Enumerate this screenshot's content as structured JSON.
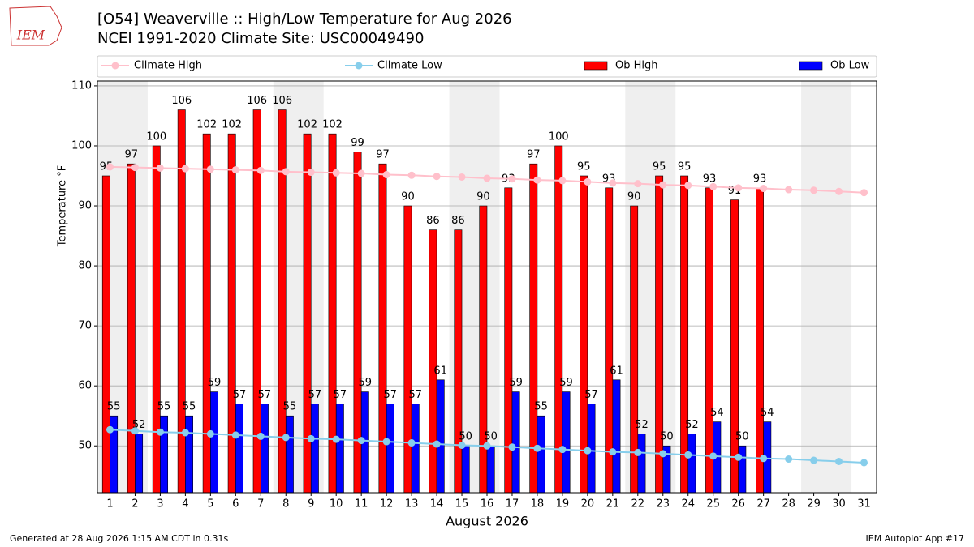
{
  "chart_data": {
    "type": "bar",
    "title": "[O54] Weaverville :: High/Low Temperature for Aug 2026",
    "subtitle": "NCEI 1991-2020 Climate Site: USC00049490",
    "logo_text": "IEM",
    "xlabel": "August 2026",
    "ylabel": "Temperature °F",
    "x": [
      1,
      2,
      3,
      4,
      5,
      6,
      7,
      8,
      9,
      10,
      11,
      12,
      13,
      14,
      15,
      16,
      17,
      18,
      19,
      20,
      21,
      22,
      23,
      24,
      25,
      26,
      27,
      28,
      29,
      30,
      31
    ],
    "xlim": [
      0.5,
      31.5
    ],
    "xticks": [
      1,
      2,
      3,
      4,
      5,
      6,
      7,
      8,
      9,
      10,
      11,
      12,
      13,
      14,
      15,
      16,
      17,
      18,
      19,
      20,
      21,
      22,
      23,
      24,
      25,
      26,
      27,
      28,
      29,
      30,
      31
    ],
    "ylim": [
      42.2,
      110.8
    ],
    "yticks": [
      50,
      60,
      70,
      80,
      90,
      100,
      110
    ],
    "grid": true,
    "series": [
      {
        "name": "Climate High",
        "type": "line",
        "color": "#ffc0cb",
        "values": [
          96.5,
          96.4,
          96.3,
          96.2,
          96.1,
          96.0,
          95.9,
          95.7,
          95.6,
          95.5,
          95.4,
          95.2,
          95.1,
          94.9,
          94.8,
          94.6,
          94.5,
          94.3,
          94.2,
          94.0,
          93.8,
          93.7,
          93.5,
          93.4,
          93.2,
          93.0,
          92.9,
          92.7,
          92.6,
          92.4,
          92.2
        ]
      },
      {
        "name": "Climate Low",
        "type": "line",
        "color": "#87ceeb",
        "values": [
          52.7,
          52.5,
          52.3,
          52.2,
          52.0,
          51.8,
          51.6,
          51.4,
          51.2,
          51.1,
          50.9,
          50.7,
          50.5,
          50.3,
          50.1,
          50.0,
          49.8,
          49.6,
          49.4,
          49.2,
          49.0,
          48.9,
          48.7,
          48.5,
          48.3,
          48.1,
          47.9,
          47.8,
          47.6,
          47.4,
          47.2
        ]
      },
      {
        "name": "Ob High",
        "type": "bar",
        "color": "#ff0000",
        "values": [
          95,
          97,
          100,
          106,
          102,
          102,
          106,
          106,
          102,
          102,
          99,
          97,
          90,
          86,
          86,
          90,
          93,
          97,
          100,
          95,
          93,
          90,
          95,
          95,
          93,
          91,
          93,
          null,
          null,
          null,
          null
        ]
      },
      {
        "name": "Ob Low",
        "type": "bar",
        "color": "#0000ff",
        "values": [
          55,
          52,
          55,
          55,
          59,
          57,
          57,
          55,
          57,
          57,
          59,
          57,
          57,
          61,
          50,
          50,
          59,
          55,
          59,
          57,
          61,
          52,
          50,
          52,
          54,
          50,
          54,
          null,
          null,
          null,
          null
        ]
      }
    ],
    "footer_left": "Generated at 28 Aug 2026 1:15 AM CDT in 0.31s",
    "footer_right": "IEM Autoplot App #17"
  }
}
